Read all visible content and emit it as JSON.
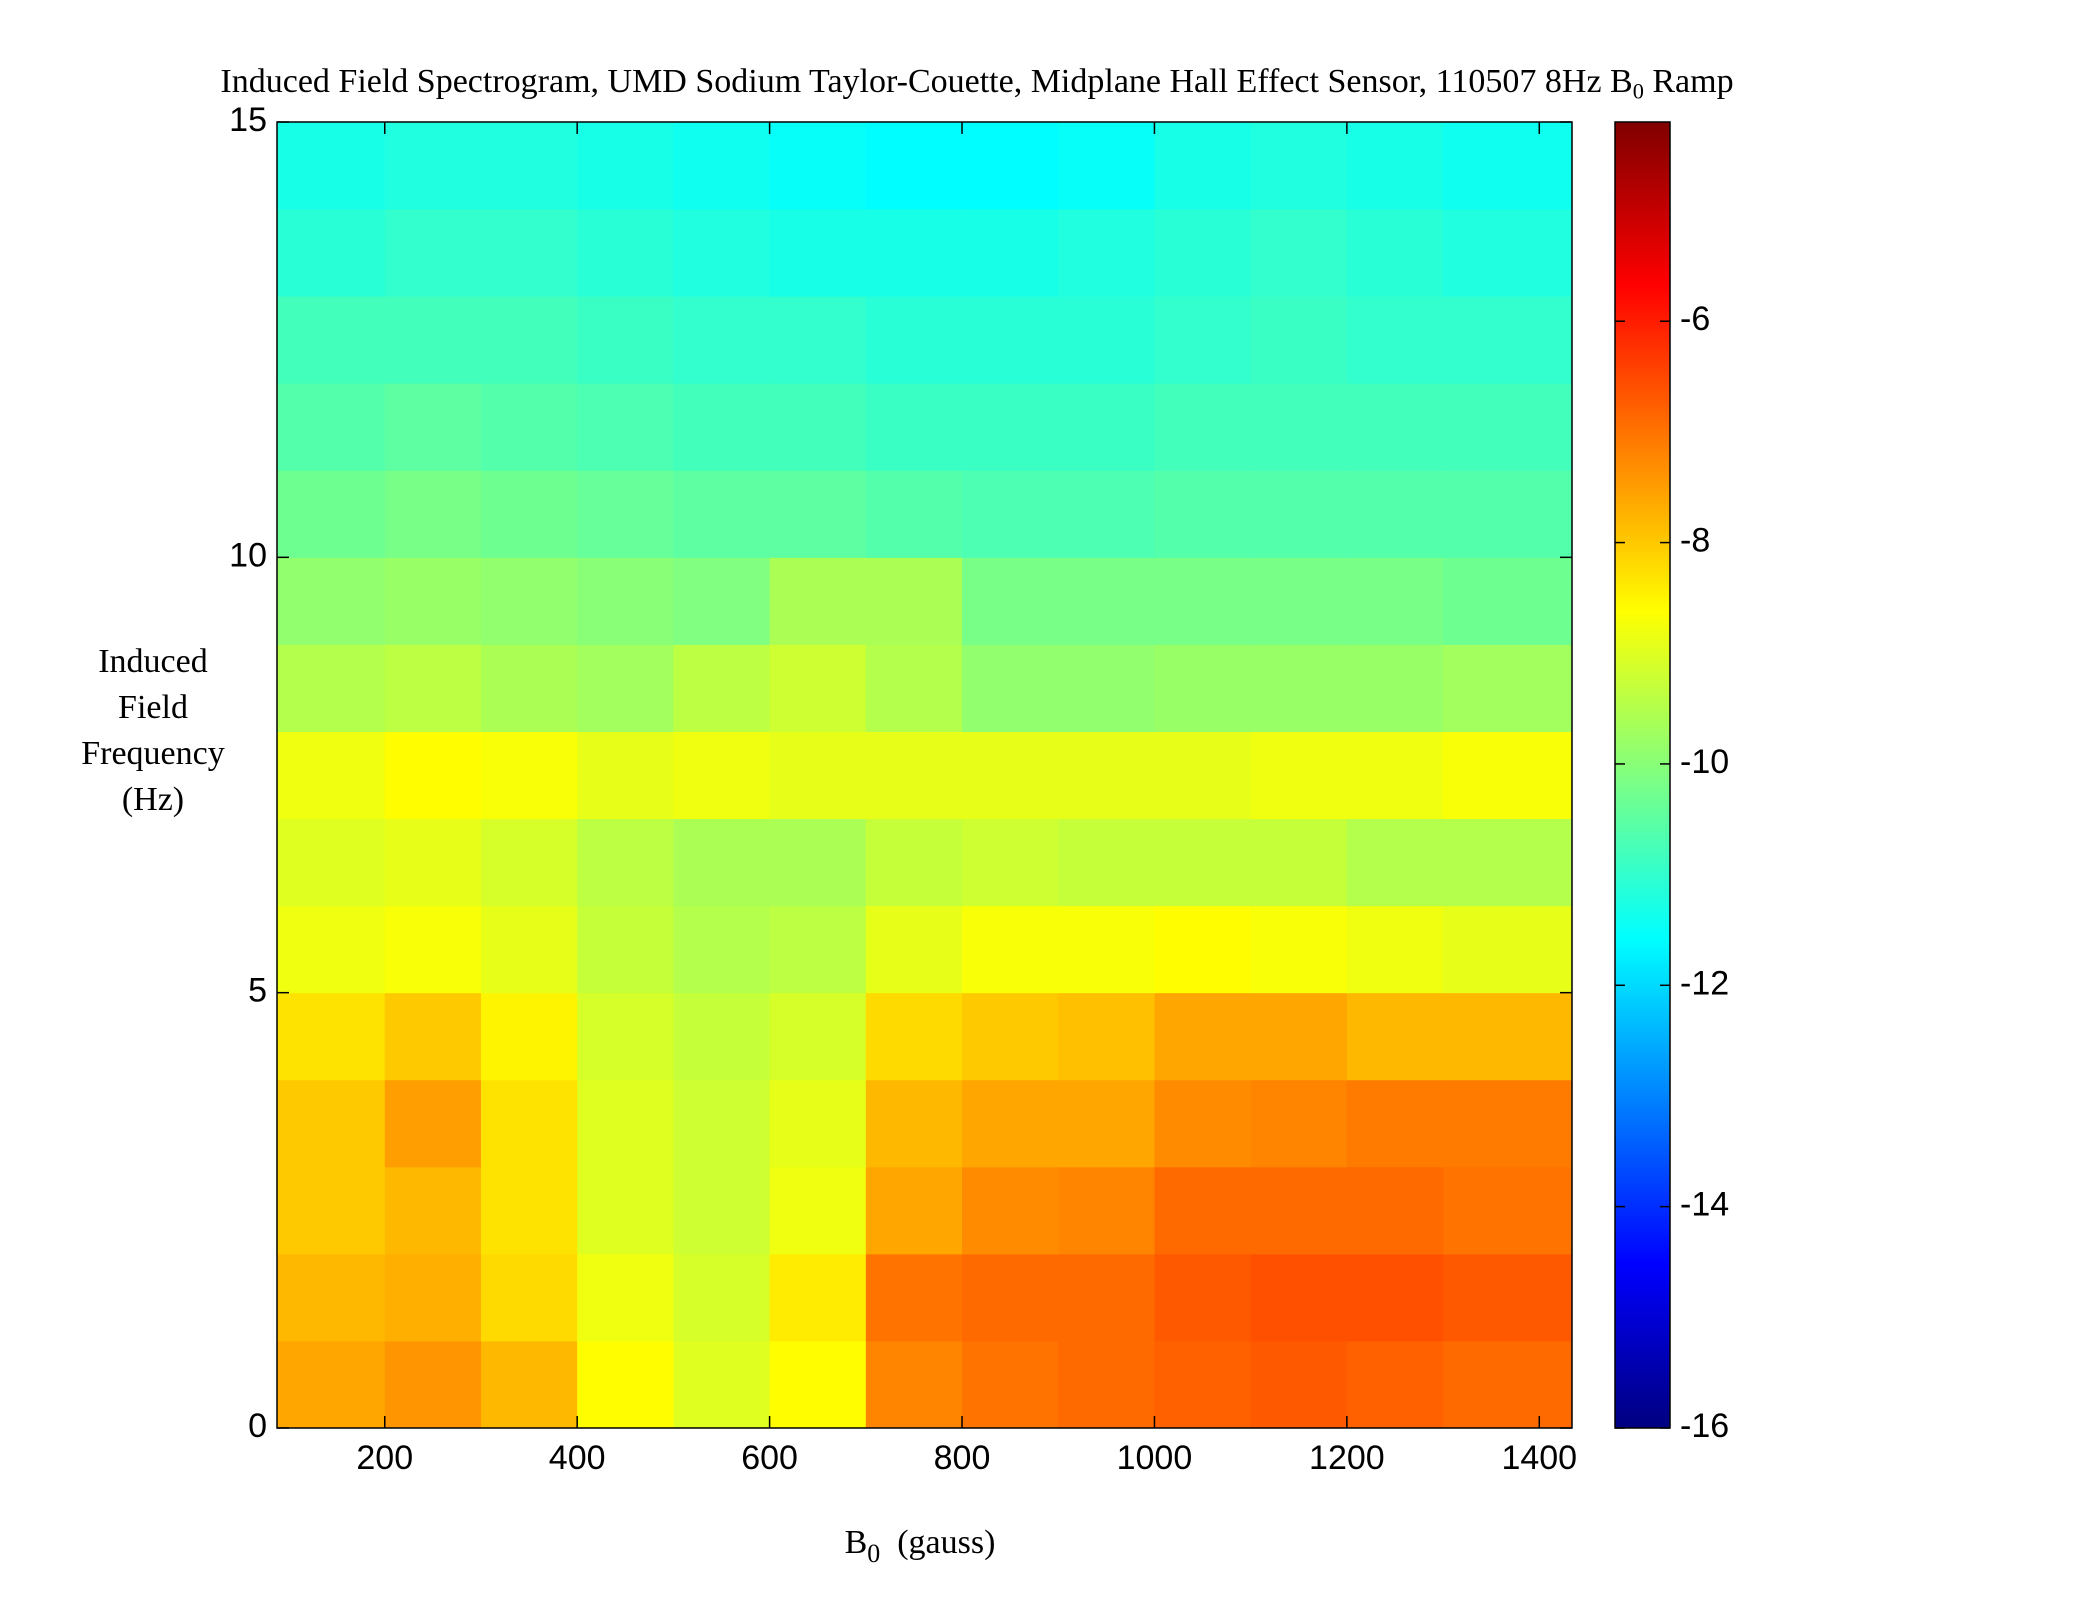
{
  "chart_data": {
    "type": "heatmap",
    "title": [
      {
        "text": "Induced Field Spectrogram, UMD Sodium Taylor-Couette, Midplane Hall Effect Sensor, 110507 8Hz B"
      },
      {
        "text": "0",
        "sub": true
      },
      {
        "text": " Ramp"
      }
    ],
    "x_label": [
      {
        "text": "B"
      },
      {
        "text": "0",
        "sub": true
      },
      {
        "text": "  (gauss)"
      }
    ],
    "y_label": [
      "Induced",
      "Field",
      "Frequency",
      "(Hz)"
    ],
    "x_edges": [
      88,
      200,
      300,
      400,
      500,
      600,
      700,
      800,
      900,
      1000,
      1100,
      1200,
      1300,
      1434
    ],
    "y_edges": [
      0,
      1,
      2,
      3,
      4,
      5,
      6,
      7,
      8,
      9,
      10,
      11,
      12,
      13,
      14,
      15
    ],
    "z": [
      [
        -7.6,
        -7.4,
        -7.8,
        -8.6,
        -9.0,
        -8.6,
        -7.2,
        -7.0,
        -6.9,
        -6.8,
        -6.7,
        -6.8,
        -6.9
      ],
      [
        -7.8,
        -7.7,
        -8.2,
        -8.8,
        -9.1,
        -8.4,
        -7.0,
        -6.9,
        -6.9,
        -6.7,
        -6.6,
        -6.6,
        -6.7
      ],
      [
        -8.0,
        -7.8,
        -8.3,
        -9.0,
        -9.2,
        -8.8,
        -7.6,
        -7.3,
        -7.2,
        -6.9,
        -6.9,
        -6.9,
        -7.0
      ],
      [
        -8.0,
        -7.5,
        -8.3,
        -9.0,
        -9.2,
        -8.9,
        -7.8,
        -7.6,
        -7.6,
        -7.3,
        -7.2,
        -7.1,
        -7.1
      ],
      [
        -8.3,
        -8.0,
        -8.5,
        -9.1,
        -9.3,
        -9.1,
        -8.2,
        -8.0,
        -7.9,
        -7.6,
        -7.6,
        -7.8,
        -7.8
      ],
      [
        -8.8,
        -8.7,
        -8.9,
        -9.3,
        -9.5,
        -9.4,
        -8.9,
        -8.7,
        -8.7,
        -8.6,
        -8.7,
        -8.8,
        -8.9
      ],
      [
        -9.0,
        -8.9,
        -9.1,
        -9.4,
        -9.6,
        -9.6,
        -9.3,
        -9.2,
        -9.3,
        -9.3,
        -9.3,
        -9.5,
        -9.5
      ],
      [
        -8.8,
        -8.6,
        -8.7,
        -8.9,
        -8.8,
        -8.9,
        -8.9,
        -8.9,
        -8.9,
        -8.9,
        -8.8,
        -8.8,
        -8.7
      ],
      [
        -9.5,
        -9.4,
        -9.6,
        -9.7,
        -9.4,
        -9.2,
        -9.5,
        -9.9,
        -9.9,
        -9.8,
        -9.8,
        -9.8,
        -9.7
      ],
      [
        -9.9,
        -9.8,
        -9.9,
        -10.0,
        -10.1,
        -9.6,
        -9.6,
        -10.2,
        -10.2,
        -10.2,
        -10.2,
        -10.2,
        -10.3
      ],
      [
        -10.3,
        -10.2,
        -10.3,
        -10.4,
        -10.5,
        -10.5,
        -10.6,
        -10.7,
        -10.7,
        -10.6,
        -10.6,
        -10.6,
        -10.6
      ],
      [
        -10.6,
        -10.5,
        -10.6,
        -10.7,
        -10.8,
        -10.8,
        -10.9,
        -10.9,
        -10.9,
        -10.8,
        -10.8,
        -10.8,
        -10.8
      ],
      [
        -10.8,
        -10.8,
        -10.8,
        -10.9,
        -11.0,
        -11.0,
        -11.1,
        -11.1,
        -11.1,
        -11.0,
        -10.9,
        -11.0,
        -11.0
      ],
      [
        -11.1,
        -11.0,
        -11.0,
        -11.1,
        -11.2,
        -11.3,
        -11.3,
        -11.3,
        -11.2,
        -11.1,
        -11.0,
        -11.1,
        -11.2
      ],
      [
        -11.3,
        -11.2,
        -11.2,
        -11.3,
        -11.4,
        -11.5,
        -11.6,
        -11.6,
        -11.5,
        -11.3,
        -11.2,
        -11.3,
        -11.4
      ]
    ],
    "xlim": [
      88,
      1434
    ],
    "ylim": [
      0,
      15
    ],
    "xticks": [
      200,
      400,
      600,
      800,
      1000,
      1200,
      1400
    ],
    "yticks": [
      0,
      5,
      10,
      15
    ],
    "colormap": "jet",
    "clim": [
      -16,
      -4.2
    ],
    "cticks": [
      -16,
      -14,
      -12,
      -10,
      -8,
      -6
    ]
  }
}
